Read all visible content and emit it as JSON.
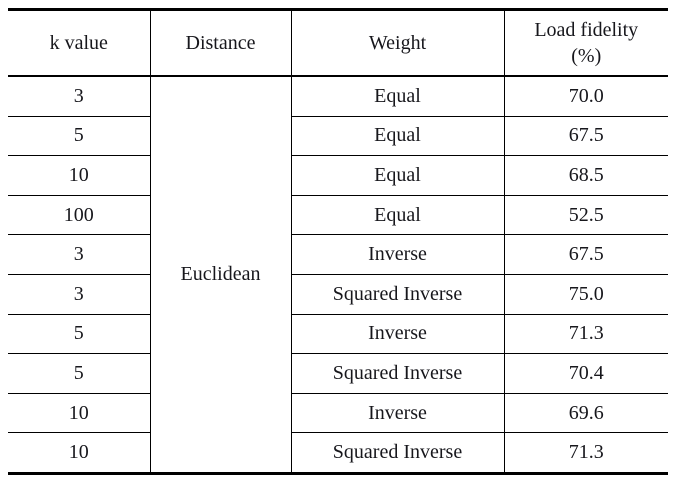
{
  "table": {
    "headers": {
      "k_value": "k value",
      "distance": "Distance",
      "weight": "Weight",
      "load_fidelity_line1": "Load fidelity",
      "load_fidelity_line2": "(%)"
    },
    "distance_value": "Euclidean",
    "rows": [
      {
        "k": "3",
        "weight": "Equal",
        "fidelity": "70.0"
      },
      {
        "k": "5",
        "weight": "Equal",
        "fidelity": "67.5"
      },
      {
        "k": "10",
        "weight": "Equal",
        "fidelity": "68.5"
      },
      {
        "k": "100",
        "weight": "Equal",
        "fidelity": "52.5"
      },
      {
        "k": "3",
        "weight": "Inverse",
        "fidelity": "67.5"
      },
      {
        "k": "3",
        "weight": "Squared Inverse",
        "fidelity": "75.0"
      },
      {
        "k": "5",
        "weight": "Inverse",
        "fidelity": "71.3"
      },
      {
        "k": "5",
        "weight": "Squared Inverse",
        "fidelity": "70.4"
      },
      {
        "k": "10",
        "weight": "Inverse",
        "fidelity": "69.6"
      },
      {
        "k": "10",
        "weight": "Squared Inverse",
        "fidelity": "71.3"
      }
    ]
  },
  "chart_data": {
    "type": "table",
    "title": "",
    "columns": [
      "k value",
      "Distance",
      "Weight",
      "Load fidelity (%)"
    ],
    "rows": [
      [
        "3",
        "Euclidean",
        "Equal",
        70.0
      ],
      [
        "5",
        "Euclidean",
        "Equal",
        67.5
      ],
      [
        "10",
        "Euclidean",
        "Equal",
        68.5
      ],
      [
        "100",
        "Euclidean",
        "Equal",
        52.5
      ],
      [
        "3",
        "Euclidean",
        "Inverse",
        67.5
      ],
      [
        "3",
        "Euclidean",
        "Squared Inverse",
        75.0
      ],
      [
        "5",
        "Euclidean",
        "Inverse",
        71.3
      ],
      [
        "5",
        "Euclidean",
        "Squared Inverse",
        70.4
      ],
      [
        "10",
        "Euclidean",
        "Inverse",
        69.6
      ],
      [
        "10",
        "Euclidean",
        "Squared Inverse",
        71.3
      ]
    ]
  },
  "colors": {
    "border": "#000000",
    "text": "#17171c",
    "background": "#ffffff"
  }
}
